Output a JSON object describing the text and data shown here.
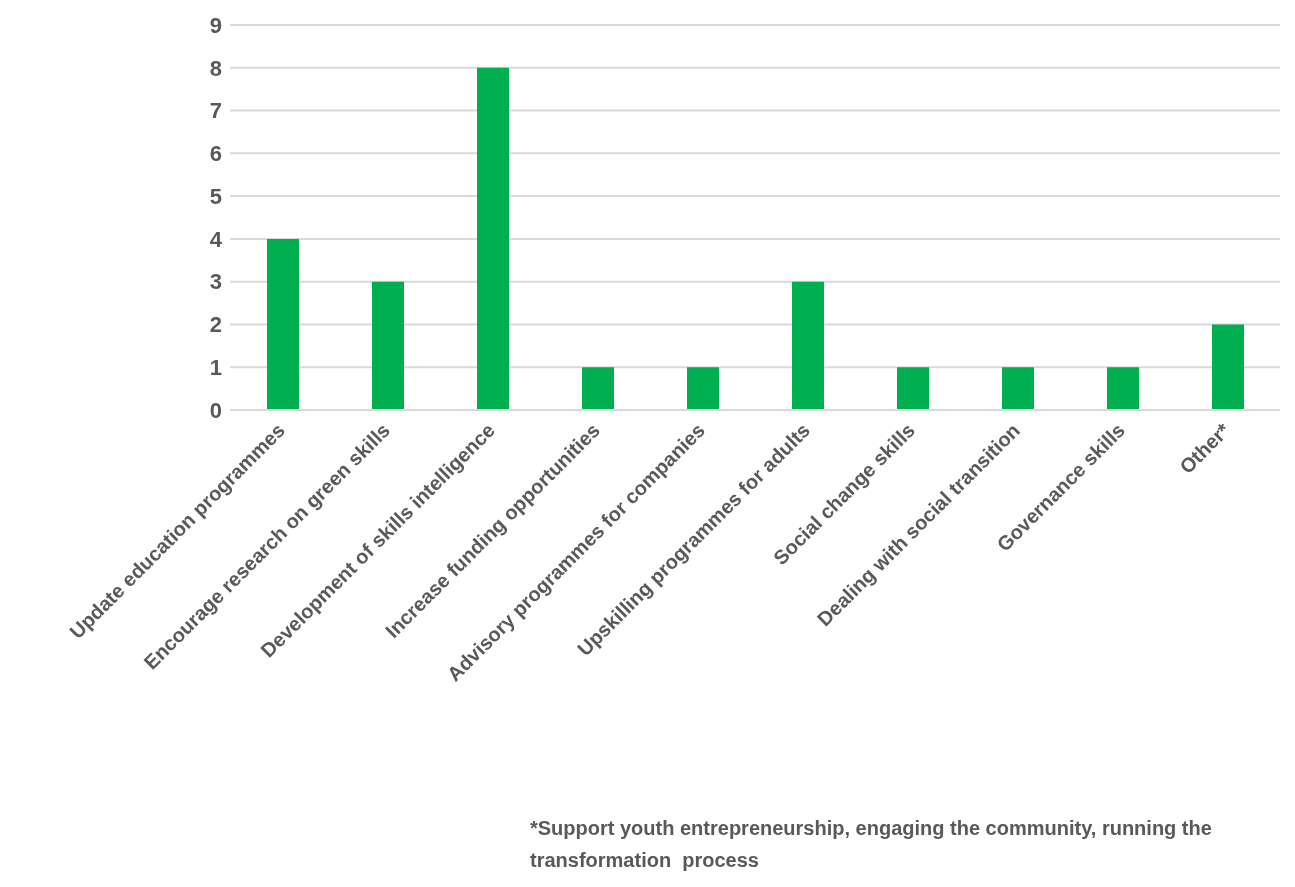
{
  "chart_data": {
    "type": "bar",
    "categories": [
      "Update education programmes",
      "Encourage research on green skills",
      "Development of skills intelligence",
      "Increase funding opportunities",
      "Advisory programmes for companies",
      "Upskilling programmes for adults",
      "Social change skills",
      "Dealing with social transition",
      "Governance skills",
      "Other*"
    ],
    "values": [
      4,
      3,
      8,
      1,
      1,
      3,
      1,
      1,
      1,
      2
    ],
    "color": "#00b050",
    "ylim": [
      0,
      9
    ],
    "yticks": [
      0,
      1,
      2,
      3,
      4,
      5,
      6,
      7,
      8,
      9
    ],
    "grid": "y",
    "annotations": [
      "*Support youth entrepreneurship, engaging the community, running the transformation  process"
    ]
  }
}
